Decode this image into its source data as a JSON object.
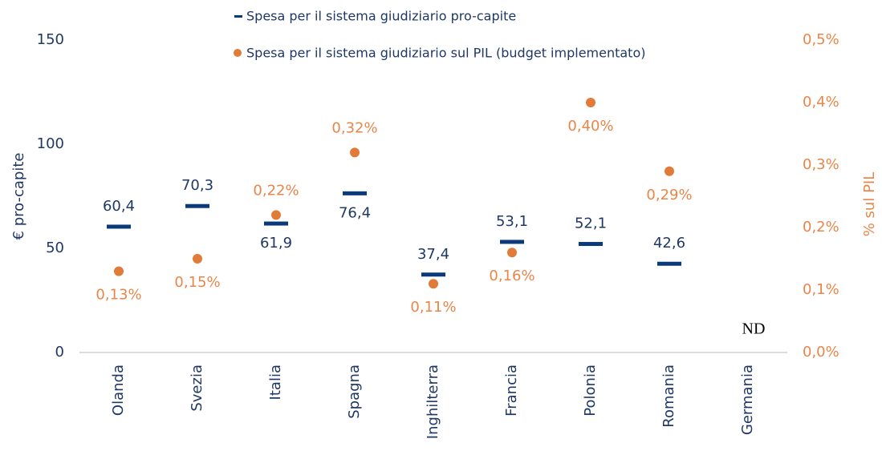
{
  "chart_data": {
    "type": "dot",
    "categories": [
      "Olanda",
      "Svezia",
      "Italia",
      "Spagna",
      "Inghilterra",
      "Francia",
      "Polonia",
      "Romania",
      "Germania"
    ],
    "series": [
      {
        "name": "Spesa per il sistema giudiziario pro-capite",
        "color": "#0b3a7a",
        "values": [
          60.4,
          70.3,
          61.9,
          76.4,
          37.4,
          53.1,
          52.1,
          42.6,
          null
        ],
        "value_labels": [
          "60,4",
          "70,3",
          "61,9",
          "76,4",
          "37,4",
          "53,1",
          "52,1",
          "42,6",
          null
        ]
      },
      {
        "name": "Spesa per il sistema giudiziario sul PIL (budget implementato)",
        "color": "#e07b39",
        "axis": "y2",
        "values": [
          0.13,
          0.15,
          0.22,
          0.32,
          0.11,
          0.16,
          0.4,
          0.29,
          null
        ],
        "value_labels": [
          "0,13%",
          "0,15%",
          "0,22%",
          "0,32%",
          "0,11%",
          "0,16%",
          "0,40%",
          "0,29%",
          null
        ]
      }
    ],
    "ylabel": "€ pro-capite",
    "y2label": "% sul PIL",
    "ylim": [
      0,
      150
    ],
    "yticks": [
      0,
      50,
      100,
      150
    ],
    "y2lim": [
      0,
      0.5
    ],
    "y2ticks": [
      {
        "value": 0,
        "label": "0,0%"
      },
      {
        "value": 0.1,
        "label": "0,1%"
      },
      {
        "value": 0.2,
        "label": "0,2%"
      },
      {
        "value": 0.3,
        "label": "0,3%"
      },
      {
        "value": 0.4,
        "label": "0,4%"
      },
      {
        "value": 0.5,
        "label": "0,5%"
      }
    ],
    "annotations": [
      {
        "text": "ND",
        "category": 8
      }
    ],
    "legend": "top"
  }
}
